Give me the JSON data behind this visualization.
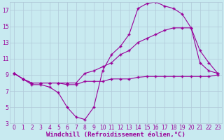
{
  "background_color": "#c8eaf0",
  "line_color": "#990099",
  "grid_color": "#b0c8d8",
  "xlabel": "Windchill (Refroidissement éolien,°C)",
  "xlabel_color": "#990099",
  "xlim": [
    -0.5,
    23.5
  ],
  "ylim": [
    3,
    18
  ],
  "yticks": [
    3,
    5,
    7,
    9,
    11,
    13,
    15,
    17
  ],
  "xticks": [
    0,
    1,
    2,
    3,
    4,
    5,
    6,
    7,
    8,
    9,
    10,
    11,
    12,
    13,
    14,
    15,
    16,
    17,
    18,
    19,
    20,
    21,
    22,
    23
  ],
  "line1_x": [
    0,
    1,
    2,
    3,
    4,
    5,
    6,
    7,
    8,
    9,
    10,
    11,
    12,
    13,
    14,
    15,
    16,
    17,
    18,
    19,
    20,
    21,
    22,
    23
  ],
  "line1_y": [
    9.2,
    8.5,
    7.8,
    7.8,
    7.5,
    6.8,
    5.0,
    3.8,
    3.5,
    5.0,
    9.5,
    11.5,
    12.5,
    14.0,
    17.2,
    17.8,
    18.0,
    17.5,
    17.2,
    16.5,
    14.8,
    10.5,
    9.5,
    9.2
  ],
  "line2_x": [
    0,
    1,
    2,
    3,
    4,
    5,
    6,
    7,
    8,
    9,
    10,
    11,
    12,
    13,
    14,
    15,
    16,
    17,
    18,
    19,
    20,
    21,
    22,
    23
  ],
  "line2_y": [
    9.2,
    8.5,
    8.0,
    8.0,
    8.0,
    8.0,
    7.8,
    7.8,
    8.2,
    8.2,
    8.2,
    8.5,
    8.5,
    8.5,
    8.7,
    8.8,
    8.8,
    8.8,
    8.8,
    8.8,
    8.8,
    8.8,
    8.8,
    9.0
  ],
  "line3_x": [
    0,
    1,
    2,
    3,
    4,
    5,
    6,
    7,
    8,
    9,
    10,
    11,
    12,
    13,
    14,
    15,
    16,
    17,
    18,
    19,
    20,
    21,
    22,
    23
  ],
  "line3_y": [
    9.2,
    8.5,
    8.0,
    8.0,
    8.0,
    8.0,
    8.0,
    8.0,
    9.2,
    9.5,
    10.0,
    10.5,
    11.5,
    12.0,
    13.0,
    13.5,
    14.0,
    14.5,
    14.8,
    14.8,
    14.8,
    12.0,
    10.5,
    9.2
  ],
  "tick_fontsize": 5.5,
  "xlabel_fontsize": 6.5
}
